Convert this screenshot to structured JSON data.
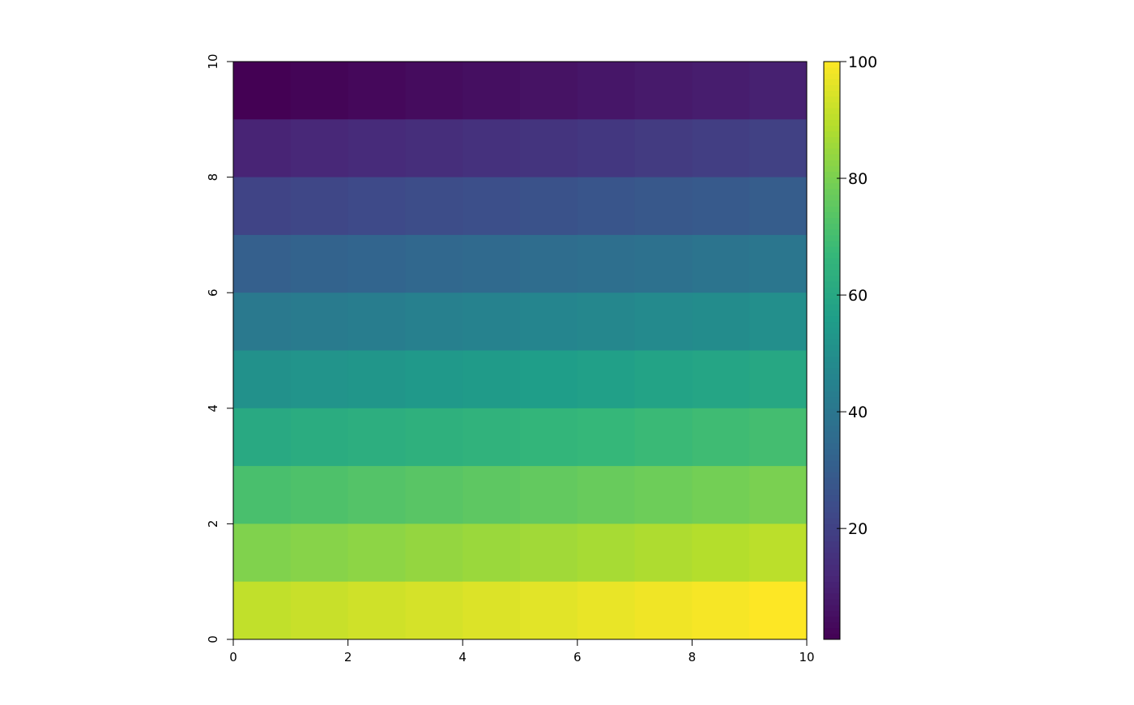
{
  "chart_data": {
    "type": "heatmap",
    "title": "",
    "xlabel": "",
    "ylabel": "",
    "xlim": [
      0,
      10
    ],
    "ylim": [
      0,
      10
    ],
    "x_ticks": [
      "0",
      "2",
      "4",
      "6",
      "8",
      "10"
    ],
    "y_ticks": [
      "0",
      "2",
      "4",
      "6",
      "8",
      "10"
    ],
    "colormap": "viridis",
    "color_range": [
      1,
      100
    ],
    "legend_ticks": [
      "20",
      "40",
      "60",
      "80",
      "100"
    ],
    "legend_placement": "right",
    "grid": false,
    "rows_top_to_bottom": [
      [
        1,
        2,
        3,
        4,
        5,
        6,
        7,
        8,
        9,
        10
      ],
      [
        11,
        12,
        13,
        14,
        15,
        16,
        17,
        18,
        19,
        20
      ],
      [
        21,
        22,
        23,
        24,
        25,
        26,
        27,
        28,
        29,
        30
      ],
      [
        31,
        32,
        33,
        34,
        35,
        36,
        37,
        38,
        39,
        40
      ],
      [
        41,
        42,
        43,
        44,
        45,
        46,
        47,
        48,
        49,
        50
      ],
      [
        51,
        52,
        53,
        54,
        55,
        56,
        57,
        58,
        59,
        60
      ],
      [
        61,
        62,
        63,
        64,
        65,
        66,
        67,
        68,
        69,
        70
      ],
      [
        71,
        72,
        73,
        74,
        75,
        76,
        77,
        78,
        79,
        80
      ],
      [
        81,
        82,
        83,
        84,
        85,
        86,
        87,
        88,
        89,
        90
      ],
      [
        91,
        92,
        93,
        94,
        95,
        96,
        97,
        98,
        99,
        100
      ]
    ]
  }
}
